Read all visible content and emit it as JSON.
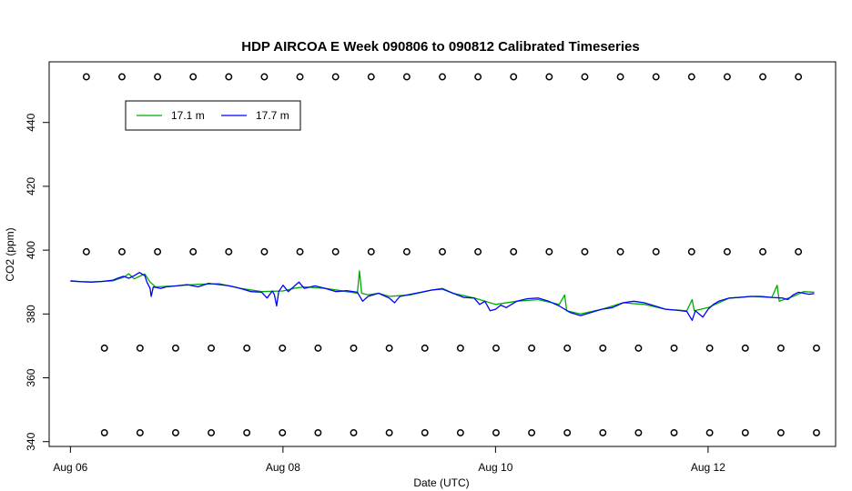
{
  "chart_data": {
    "type": "line",
    "title": "HDP AIRCOA E  Week 090806 to 090812  Calibrated Timeseries",
    "xlabel": "Date (UTC)",
    "ylabel": "CO2 (ppm)",
    "x_unit": "days since Aug 06 00:00 UTC",
    "xlim": [
      -0.2,
      7.2
    ],
    "ylim": [
      338.5,
      459
    ],
    "x_ticks": [
      {
        "value": 0,
        "label": "Aug 06"
      },
      {
        "value": 2,
        "label": "Aug 08"
      },
      {
        "value": 4,
        "label": "Aug 10"
      },
      {
        "value": 6,
        "label": "Aug 12"
      }
    ],
    "y_ticks": [
      {
        "value": 340,
        "label": "340"
      },
      {
        "value": 360,
        "label": "360"
      },
      {
        "value": 380,
        "label": "380"
      },
      {
        "value": 400,
        "label": "400"
      },
      {
        "value": 420,
        "label": "420"
      },
      {
        "value": 440,
        "label": "440"
      }
    ],
    "legend": {
      "position": "top-left",
      "entries": [
        {
          "name": "17.1 m",
          "color": "#00aa00"
        },
        {
          "name": "17.7 m",
          "color": "#0000ff"
        }
      ]
    },
    "series": [
      {
        "name": "17.1 m",
        "color": "#00aa00",
        "points": [
          [
            0.0,
            390.3
          ],
          [
            0.2,
            390.0
          ],
          [
            0.4,
            390.4
          ],
          [
            0.5,
            391.5
          ],
          [
            0.55,
            392.6
          ],
          [
            0.6,
            391.0
          ],
          [
            0.65,
            391.8
          ],
          [
            0.7,
            392.5
          ],
          [
            0.75,
            390.0
          ],
          [
            0.8,
            388.5
          ],
          [
            1.0,
            388.8
          ],
          [
            1.2,
            389.3
          ],
          [
            1.4,
            389.5
          ],
          [
            1.6,
            388.0
          ],
          [
            1.8,
            387.0
          ],
          [
            2.0,
            387.2
          ],
          [
            2.1,
            388.0
          ],
          [
            2.2,
            388.5
          ],
          [
            2.4,
            388.0
          ],
          [
            2.6,
            387.0
          ],
          [
            2.7,
            386.5
          ],
          [
            2.72,
            393.5
          ],
          [
            2.74,
            386.5
          ],
          [
            2.8,
            386.0
          ],
          [
            2.9,
            386.5
          ],
          [
            3.0,
            385.5
          ],
          [
            3.2,
            386.0
          ],
          [
            3.4,
            387.5
          ],
          [
            3.5,
            388.0
          ],
          [
            3.6,
            386.5
          ],
          [
            3.8,
            385.0
          ],
          [
            4.0,
            383.0
          ],
          [
            4.2,
            384.0
          ],
          [
            4.4,
            384.5
          ],
          [
            4.6,
            383.0
          ],
          [
            4.65,
            386.0
          ],
          [
            4.67,
            381.0
          ],
          [
            4.8,
            380.0
          ],
          [
            5.0,
            381.5
          ],
          [
            5.2,
            383.5
          ],
          [
            5.4,
            383.0
          ],
          [
            5.6,
            381.5
          ],
          [
            5.8,
            381.0
          ],
          [
            5.85,
            384.5
          ],
          [
            5.87,
            381.0
          ],
          [
            6.0,
            382.0
          ],
          [
            6.2,
            385.0
          ],
          [
            6.4,
            385.5
          ],
          [
            6.6,
            385.2
          ],
          [
            6.65,
            389.0
          ],
          [
            6.67,
            384.0
          ],
          [
            6.8,
            385.5
          ],
          [
            6.9,
            387.0
          ],
          [
            7.0,
            386.8
          ]
        ]
      },
      {
        "name": "17.7 m",
        "color": "#0000ff",
        "points": [
          [
            0.0,
            390.4
          ],
          [
            0.1,
            390.1
          ],
          [
            0.2,
            390.0
          ],
          [
            0.3,
            390.2
          ],
          [
            0.4,
            390.6
          ],
          [
            0.45,
            391.3
          ],
          [
            0.5,
            391.8
          ],
          [
            0.55,
            391.2
          ],
          [
            0.6,
            392.0
          ],
          [
            0.65,
            393.0
          ],
          [
            0.7,
            392.0
          ],
          [
            0.72,
            390.0
          ],
          [
            0.75,
            388.0
          ],
          [
            0.76,
            385.5
          ],
          [
            0.78,
            388.5
          ],
          [
            0.85,
            388.0
          ],
          [
            0.9,
            388.5
          ],
          [
            1.0,
            388.8
          ],
          [
            1.1,
            389.2
          ],
          [
            1.2,
            388.5
          ],
          [
            1.3,
            389.6
          ],
          [
            1.4,
            389.2
          ],
          [
            1.5,
            388.8
          ],
          [
            1.6,
            388.0
          ],
          [
            1.7,
            387.0
          ],
          [
            1.8,
            386.8
          ],
          [
            1.85,
            385.0
          ],
          [
            1.9,
            387.2
          ],
          [
            1.92,
            386.0
          ],
          [
            1.94,
            382.5
          ],
          [
            1.96,
            387.0
          ],
          [
            2.0,
            389.0
          ],
          [
            2.05,
            387.0
          ],
          [
            2.1,
            388.5
          ],
          [
            2.15,
            390.0
          ],
          [
            2.2,
            388.0
          ],
          [
            2.3,
            388.8
          ],
          [
            2.4,
            388.0
          ],
          [
            2.5,
            387.0
          ],
          [
            2.6,
            387.3
          ],
          [
            2.7,
            386.8
          ],
          [
            2.75,
            384.0
          ],
          [
            2.8,
            385.5
          ],
          [
            2.9,
            386.5
          ],
          [
            3.0,
            385.0
          ],
          [
            3.05,
            383.5
          ],
          [
            3.1,
            385.5
          ],
          [
            3.2,
            386.2
          ],
          [
            3.3,
            386.8
          ],
          [
            3.4,
            387.5
          ],
          [
            3.5,
            387.8
          ],
          [
            3.6,
            386.5
          ],
          [
            3.7,
            385.2
          ],
          [
            3.8,
            385.0
          ],
          [
            3.85,
            383.0
          ],
          [
            3.9,
            384.0
          ],
          [
            3.95,
            381.0
          ],
          [
            4.0,
            381.5
          ],
          [
            4.05,
            382.8
          ],
          [
            4.1,
            382.0
          ],
          [
            4.2,
            384.0
          ],
          [
            4.3,
            384.8
          ],
          [
            4.4,
            385.0
          ],
          [
            4.5,
            384.0
          ],
          [
            4.6,
            382.5
          ],
          [
            4.7,
            380.5
          ],
          [
            4.8,
            379.5
          ],
          [
            4.9,
            380.5
          ],
          [
            5.0,
            381.5
          ],
          [
            5.1,
            382.0
          ],
          [
            5.2,
            383.5
          ],
          [
            5.3,
            384.0
          ],
          [
            5.4,
            383.5
          ],
          [
            5.5,
            382.5
          ],
          [
            5.6,
            381.5
          ],
          [
            5.7,
            381.2
          ],
          [
            5.8,
            380.8
          ],
          [
            5.85,
            378.0
          ],
          [
            5.88,
            381.0
          ],
          [
            5.95,
            379.0
          ],
          [
            6.0,
            381.5
          ],
          [
            6.05,
            383.0
          ],
          [
            6.1,
            384.0
          ],
          [
            6.2,
            385.0
          ],
          [
            6.3,
            385.2
          ],
          [
            6.4,
            385.5
          ],
          [
            6.5,
            385.5
          ],
          [
            6.6,
            385.2
          ],
          [
            6.7,
            385.0
          ],
          [
            6.75,
            384.5
          ],
          [
            6.8,
            386.0
          ],
          [
            6.85,
            386.8
          ],
          [
            6.9,
            386.5
          ],
          [
            6.95,
            386.2
          ],
          [
            7.0,
            386.4
          ]
        ]
      }
    ],
    "marker_rows": [
      {
        "y": 454.3,
        "x_start": 0.15,
        "x_step": 0.335,
        "count": 21
      },
      {
        "y": 399.5,
        "x_start": 0.15,
        "x_step": 0.335,
        "count": 21
      },
      {
        "y": 369.3,
        "x_start": 0.32,
        "x_step": 0.335,
        "count": 21
      },
      {
        "y": 342.8,
        "x_start": 0.32,
        "x_step": 0.335,
        "count": 21
      }
    ]
  }
}
